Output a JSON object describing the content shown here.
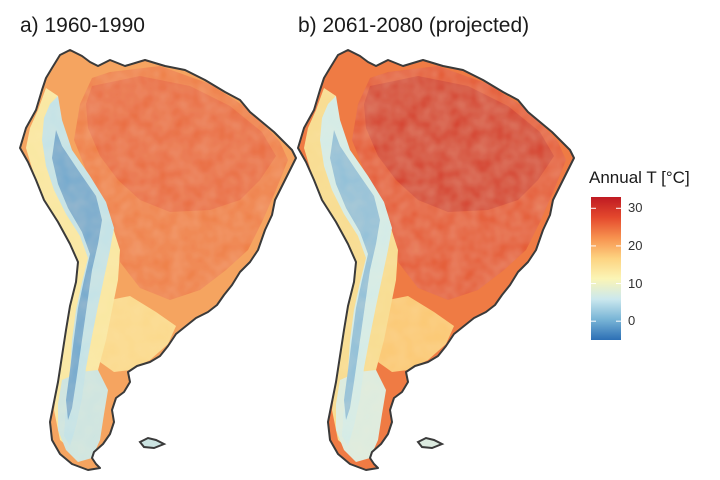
{
  "panels": [
    {
      "title": "a) 1960-1990",
      "warmth": 0
    },
    {
      "title": "b) 2061-2080 (projected)",
      "warmth": 1
    }
  ],
  "legend": {
    "title": "Annual T [°C]",
    "min": -5,
    "max": 33,
    "ticks": [
      0,
      10,
      20,
      30
    ],
    "colors": [
      "#2c6fb5",
      "#78b4d6",
      "#cbe8ee",
      "#fbf5b6",
      "#fdd381",
      "#f7924f",
      "#e4492d",
      "#bf1a22"
    ]
  },
  "colors": {
    "coastline": "#3a3a3a"
  }
}
